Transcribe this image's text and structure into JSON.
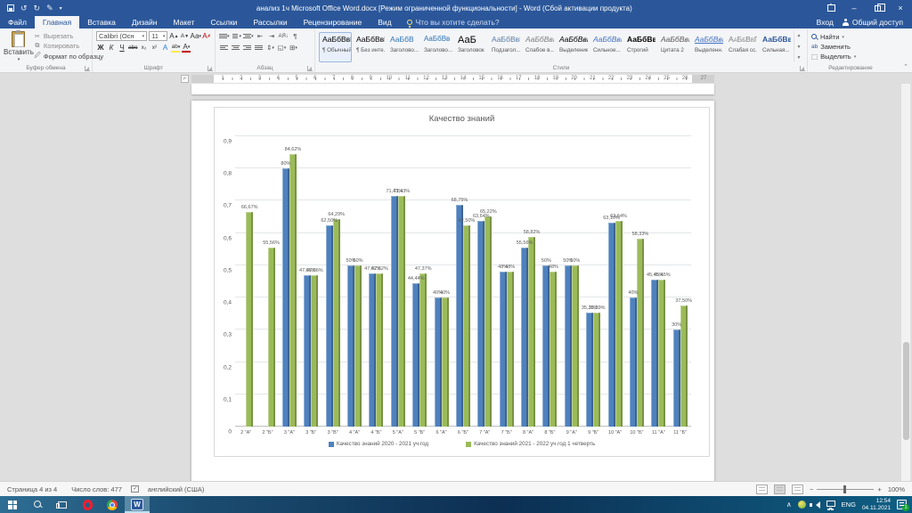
{
  "window": {
    "title": "анализ 1ч Microsoft Office Word.docx [Режим ограниченной функциональности] - Word (Сбой активации продукта)",
    "quick_access": [
      "save-icon",
      "undo-icon",
      "redo-icon",
      "touch-mode-icon"
    ],
    "controls": [
      "ribbon-display-options",
      "minimize",
      "restore",
      "close"
    ]
  },
  "tabs": [
    {
      "key": "file",
      "label": "Файл",
      "active": false
    },
    {
      "key": "home",
      "label": "Главная",
      "active": true
    },
    {
      "key": "insert",
      "label": "Вставка",
      "active": false
    },
    {
      "key": "design",
      "label": "Дизайн",
      "active": false
    },
    {
      "key": "layout",
      "label": "Макет",
      "active": false
    },
    {
      "key": "references",
      "label": "Ссылки",
      "active": false
    },
    {
      "key": "mailings",
      "label": "Рассылки",
      "active": false
    },
    {
      "key": "review",
      "label": "Рецензирование",
      "active": false
    },
    {
      "key": "view",
      "label": "Вид",
      "active": false
    }
  ],
  "tell_me": "Что вы хотите сделать?",
  "account": {
    "sign_in": "Вход",
    "share": "Общий доступ"
  },
  "ribbon": {
    "clipboard": {
      "title": "Буфер обмена",
      "paste": "Вставить",
      "cut": "Вырезать",
      "copy": "Копировать",
      "format_painter": "Формат по образцу"
    },
    "font": {
      "title": "Шрифт",
      "family": "Calibri (Осн",
      "size": "11",
      "bold": "Ж",
      "italic": "К",
      "underline": "Ч",
      "strike": "abc",
      "subscript": "х₂",
      "superscript": "х²",
      "grow": "А",
      "shrink": "А",
      "case": "Аа",
      "highlight": "ab",
      "color": "А"
    },
    "paragraph": {
      "title": "Абзац",
      "sort": "АЯ",
      "pilcrow": "¶"
    },
    "styles": {
      "title": "Стили",
      "items": [
        {
          "preview": "АаБбВвГг",
          "name": "¶ Обычный",
          "cls": "st-normal",
          "selected": true
        },
        {
          "preview": "АаБбВвГг",
          "name": "¶ Без инте...",
          "cls": "st-normal",
          "selected": false
        },
        {
          "preview": "АаБбВ",
          "name": "Заголово...",
          "cls": "st-h1",
          "selected": false
        },
        {
          "preview": "АаБбВв",
          "name": "Заголово...",
          "cls": "st-h2",
          "selected": false
        },
        {
          "preview": "АаБ",
          "name": "Заголовок",
          "cls": "st-title",
          "selected": false
        },
        {
          "preview": "АаБбВвГ",
          "name": "Подзагол...",
          "cls": "st-sub",
          "selected": false
        },
        {
          "preview": "АаБбВвГг",
          "name": "Слабое в...",
          "cls": "st-subtle",
          "selected": false
        },
        {
          "preview": "АаБбВвГг",
          "name": "Выделение",
          "cls": "st-em",
          "selected": false
        },
        {
          "preview": "АаБбВвГг",
          "name": "Сильное...",
          "cls": "st-strongem",
          "selected": false
        },
        {
          "preview": "АаБбВвГг",
          "name": "Строгий",
          "cls": "st-strict",
          "selected": false
        },
        {
          "preview": "АаБбВвГг",
          "name": "Цитата 2",
          "cls": "st-quote",
          "selected": false
        },
        {
          "preview": "АаБбВвГг",
          "name": "Выделенн...",
          "cls": "st-intense",
          "selected": false
        },
        {
          "preview": "АаБбВвГг",
          "name": "Слабая сс...",
          "cls": "st-subtleref",
          "selected": false
        },
        {
          "preview": "АаБбВвГг",
          "name": "Сильная...",
          "cls": "st-strongref",
          "selected": false
        }
      ]
    },
    "editing": {
      "title": "Редактирование",
      "find": "Найти",
      "replace": "Заменить",
      "select": "Выделить"
    }
  },
  "ruler": {
    "max": 27
  },
  "chart_data": {
    "type": "bar",
    "title": "Качество знаний",
    "categories": [
      "2 \"А\"",
      "2 \"Б\"",
      "3 \"А\"",
      "3 \"Б\"",
      "3 \"В\"",
      "4 \"А\"",
      "4 \"Б\"",
      "5 \"А\"",
      "5 \"Б\"",
      "6 \"А\"",
      "6 \"Б\"",
      "7 \"А\"",
      "7 \"Б\"",
      "8 \"А\"",
      "8 \"Б\"",
      "9 \"А\"",
      "9 \"Б\"",
      "10 \"А\"",
      "10 \"Б\"",
      "11 \"А\"",
      "11 \"Б\""
    ],
    "series": [
      {
        "name": "Качество знаний 2020 - 2021 уч.год",
        "color": "#4f81bd",
        "values": [
          null,
          null,
          0.8,
          0.4706,
          0.625,
          0.5,
          0.4762,
          0.7143,
          0.4444,
          0.4,
          0.6875,
          0.6364,
          0.48,
          0.5556,
          0.5,
          0.5,
          0.3529,
          0.6316,
          0.4,
          0.4545,
          0.3
        ],
        "labels": [
          "",
          "",
          "80%",
          "47,06%",
          "62,50%",
          "50%",
          "47,62%",
          "71,43%",
          "44,44%",
          "40%",
          "68,75%",
          "63,64%",
          "48%",
          "55,56%",
          "50%",
          "50%",
          "35,29%",
          "63,16%",
          "40%",
          "45,45%",
          "30%"
        ]
      },
      {
        "name": "Качество знаний 2021 - 2022 уч.год 1 четверть",
        "color": "#9bbb59",
        "values": [
          0.6667,
          0.5556,
          0.8462,
          0.4706,
          0.6429,
          0.5,
          0.4762,
          0.7143,
          0.4737,
          0.4,
          0.625,
          0.6522,
          0.48,
          0.5882,
          0.48,
          0.5,
          0.3529,
          0.6364,
          0.5833,
          0.4545,
          0.375
        ],
        "labels": [
          "66,67%",
          "55,56%",
          "84,62%",
          "47,06%",
          "64,29%",
          "50%",
          "47,62%",
          "71,43%",
          "47,37%",
          "40%",
          "62,50%",
          "65,22%",
          "48%",
          "58,82%",
          "48%",
          "50%",
          "35,29%",
          "63,64%",
          "58,33%",
          "45,45%",
          "37,50%"
        ]
      }
    ],
    "y_ticks": [
      "0",
      "0,1",
      "0,2",
      "0,3",
      "0,4",
      "0,5",
      "0,6",
      "0,7",
      "0,8",
      "0,9"
    ],
    "ylim": [
      0,
      0.9
    ],
    "grid": true,
    "legend_position": "bottom"
  },
  "status_bar": {
    "page": "Страница 4 из 4",
    "words": "Число слов: 477",
    "language": "английский (США)",
    "zoom": "100%"
  },
  "taskbar": {
    "apps": [
      {
        "key": "start",
        "active": false
      },
      {
        "key": "search",
        "active": false
      },
      {
        "key": "task-view",
        "active": false
      },
      {
        "key": "opera",
        "active": false
      },
      {
        "key": "chrome",
        "active": false
      },
      {
        "key": "word",
        "active": true,
        "letter": "W"
      }
    ],
    "tray": {
      "lang": "ENG",
      "time": "12:54",
      "date": "04.11.2021",
      "notification_count": "1"
    }
  }
}
